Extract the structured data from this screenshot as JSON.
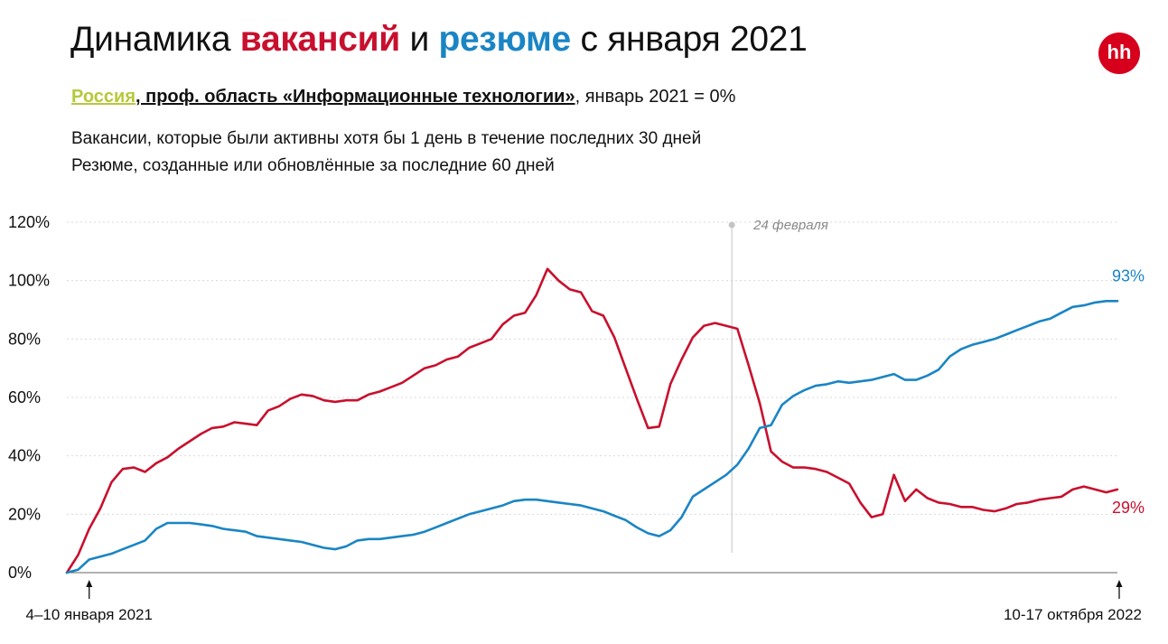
{
  "title": {
    "prefix": "Динамика ",
    "vacancies": "вакансий",
    "middle": " и ",
    "resumes": "резюме",
    "suffix": " с января 2021"
  },
  "subtitle": {
    "region": "Россия",
    "area": ", проф. область «Информационные технологии»",
    "rest": ", январь 2021 = 0%"
  },
  "description": [
    "Вакансии, которые были активны хотя бы 1 день в течение последних 30 дней",
    "Резюме, созданные или обновлённые за последние 60 дней"
  ],
  "logo": {
    "text": "hh",
    "color": "#d6001c"
  },
  "colors": {
    "vacancies": "#c8102e",
    "resumes": "#1a85c4",
    "accent": "#b5c93a"
  },
  "chart_data": {
    "type": "line",
    "x_unit": "week index (4–10 января 2021 … 10-17 октября 2022)",
    "ylim": [
      0,
      120
    ],
    "yticks": [
      0,
      20,
      40,
      60,
      80,
      100,
      120
    ],
    "ytick_labels": [
      "0%",
      "20%",
      "40%",
      "60%",
      "80%",
      "100%",
      "120%"
    ],
    "x_start_label": "4–10 января 2021",
    "x_end_label": "10-17 октября 2022",
    "annotation": {
      "label": "24 февраля",
      "x": 59.5
    },
    "series": [
      {
        "key": "vacancies",
        "color": "#c8102e",
        "end_label": "29%",
        "values": [
          0,
          6,
          15,
          22,
          31,
          35.5,
          36,
          34.5,
          37.5,
          39.5,
          42.5,
          45,
          47.5,
          49.5,
          50,
          51.5,
          51,
          50.5,
          55.5,
          57,
          59.5,
          61,
          60.5,
          59,
          58.5,
          59,
          59,
          61,
          62,
          63.5,
          65,
          67.5,
          70,
          71,
          73,
          74,
          77,
          78.5,
          80,
          85,
          88,
          89,
          95,
          104,
          100,
          97,
          96,
          89.5,
          88,
          80.5,
          70,
          59.5,
          49.5,
          50,
          64.5,
          73,
          80.5,
          84.5,
          85.5,
          84.5,
          83.5,
          71,
          58,
          41.5,
          38,
          36,
          36,
          35.5,
          34.5,
          32.5,
          30.5,
          24,
          19,
          20,
          33.5,
          24.5,
          28.5,
          25.5,
          24,
          23.5,
          22.5,
          22.5,
          21.5,
          21,
          22,
          23.5,
          24,
          25,
          25.5,
          26,
          28.5,
          29.5,
          28.5,
          27.5,
          28.5
        ]
      },
      {
        "key": "resumes",
        "color": "#1a85c4",
        "end_label": "93%",
        "values": [
          0,
          1,
          4.5,
          5.5,
          6.5,
          8,
          9.5,
          11,
          15,
          17,
          17,
          17,
          16.5,
          16,
          15,
          14.5,
          14,
          12.5,
          12,
          11.5,
          11,
          10.5,
          9.5,
          8.5,
          8,
          9,
          11,
          11.5,
          11.5,
          12,
          12.5,
          13,
          14,
          15.5,
          17,
          18.5,
          20,
          21,
          22,
          23,
          24.5,
          25,
          25,
          24.5,
          24,
          23.5,
          23,
          22,
          21,
          19.5,
          18,
          15.5,
          13.5,
          12.5,
          14.5,
          19,
          26,
          28.5,
          31,
          33.5,
          37,
          42.5,
          49.5,
          50.5,
          57.5,
          60.5,
          62.5,
          64,
          64.5,
          65.5,
          65,
          65.5,
          66,
          67,
          68,
          66,
          66,
          67.5,
          69.5,
          74,
          76.5,
          78,
          79,
          80,
          81.5,
          83,
          84.5,
          86,
          87,
          89,
          91,
          91.5,
          92.5,
          93,
          93
        ]
      }
    ]
  }
}
